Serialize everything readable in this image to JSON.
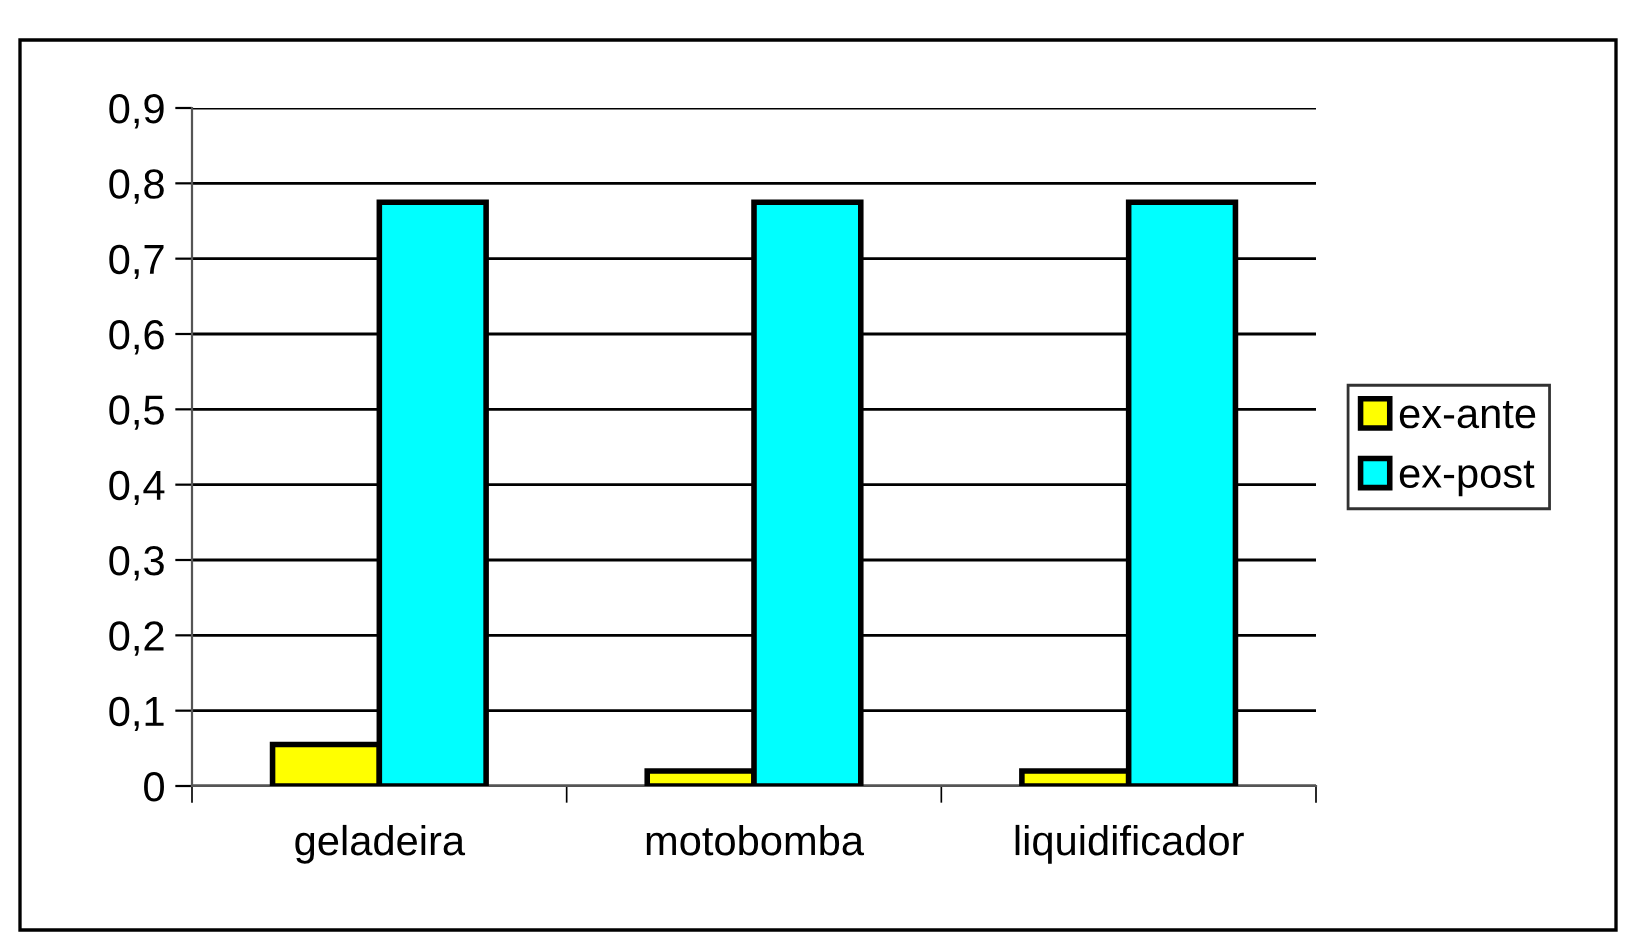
{
  "chart_data": {
    "type": "bar",
    "categories": [
      "geladeira",
      "motobomba",
      "liquidificador"
    ],
    "series": [
      {
        "name": "ex-ante",
        "color": "#ffff00",
        "values": [
          0.055,
          0.02,
          0.02
        ]
      },
      {
        "name": "ex-post",
        "color": "#00ffff",
        "values": [
          0.775,
          0.775,
          0.775
        ]
      }
    ],
    "ylim": [
      0,
      0.9
    ],
    "yticks": [
      {
        "value": 0,
        "label": "0"
      },
      {
        "value": 0.1,
        "label": "0,1"
      },
      {
        "value": 0.2,
        "label": "0,2"
      },
      {
        "value": 0.3,
        "label": "0,3"
      },
      {
        "value": 0.4,
        "label": "0,4"
      },
      {
        "value": 0.5,
        "label": "0,5"
      },
      {
        "value": 0.6,
        "label": "0,6"
      },
      {
        "value": 0.7,
        "label": "0,7"
      },
      {
        "value": 0.8,
        "label": "0,8"
      },
      {
        "value": 0.9,
        "label": "0,9"
      }
    ],
    "grid": "y",
    "legend": "right"
  }
}
